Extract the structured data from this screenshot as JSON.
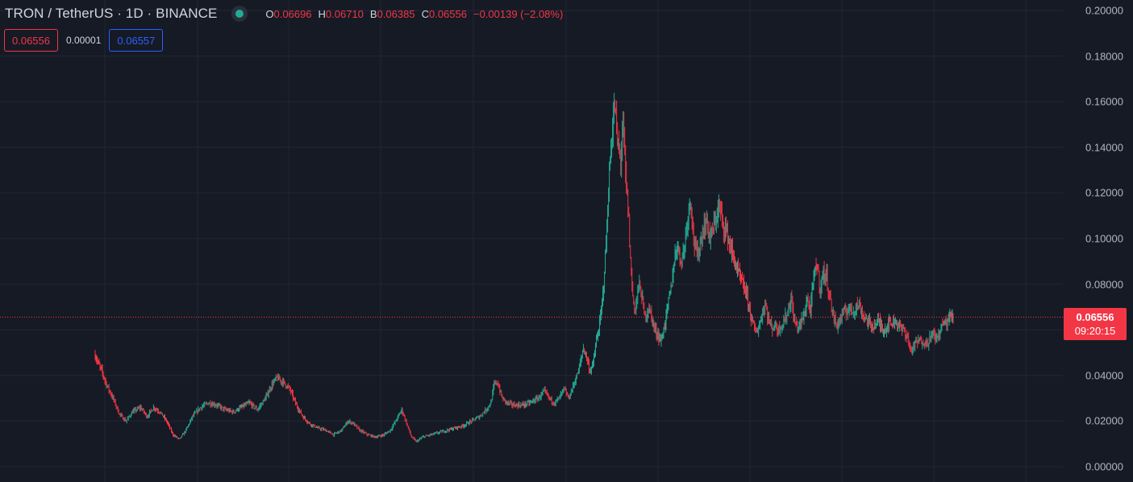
{
  "header": {
    "symbol_title": "TRON / TetherUS · 1D · BINANCE",
    "ohlc": {
      "open_label": "O",
      "open": "0.06696",
      "high_label": "H",
      "high": "0.06710",
      "low_label": "B",
      "low": "0.06385",
      "close_label": "C",
      "close": "0.06556",
      "change": "−0.00139 (−2.08%)"
    },
    "sell_price": "0.06556",
    "spread": "0.00001",
    "buy_price": "0.06557"
  },
  "last_price": {
    "price": "0.06556",
    "countdown": "09:20:15",
    "value": 0.06556
  },
  "colors": {
    "background": "#161a25",
    "grid": "#232734",
    "up": "#22ab94",
    "down": "#f23645",
    "text": "#d1d4dc",
    "axis_text": "#b2b5be",
    "buy": "#2962ff"
  },
  "chart_data": {
    "type": "candlestick",
    "title": "TRON / TetherUS · 1D · BINANCE",
    "y_axis": {
      "ticks": [
        "0.20000",
        "0.18000",
        "0.16000",
        "0.14000",
        "0.12000",
        "0.10000",
        "0.08000",
        "0.06000",
        "0.04000",
        "0.02000",
        "0.00000"
      ],
      "tick_values": [
        0.2,
        0.18,
        0.16,
        0.14,
        0.12,
        0.1,
        0.08,
        0.06,
        0.04,
        0.02,
        0.0
      ],
      "range": [
        -0.006,
        0.2045
      ],
      "position": "right"
    },
    "grid": true,
    "close_series_approx": [
      [
        0,
        0.049
      ],
      [
        4,
        0.045
      ],
      [
        8,
        0.042
      ],
      [
        14,
        0.036
      ],
      [
        22,
        0.03
      ],
      [
        30,
        0.023
      ],
      [
        38,
        0.02
      ],
      [
        46,
        0.024
      ],
      [
        56,
        0.026
      ],
      [
        64,
        0.022
      ],
      [
        72,
        0.026
      ],
      [
        80,
        0.024
      ],
      [
        88,
        0.02
      ],
      [
        96,
        0.014
      ],
      [
        104,
        0.012
      ],
      [
        112,
        0.016
      ],
      [
        120,
        0.022
      ],
      [
        130,
        0.026
      ],
      [
        140,
        0.028
      ],
      [
        150,
        0.027
      ],
      [
        160,
        0.025
      ],
      [
        170,
        0.024
      ],
      [
        180,
        0.026
      ],
      [
        190,
        0.028
      ],
      [
        200,
        0.025
      ],
      [
        210,
        0.03
      ],
      [
        218,
        0.036
      ],
      [
        224,
        0.039
      ],
      [
        232,
        0.037
      ],
      [
        240,
        0.034
      ],
      [
        248,
        0.027
      ],
      [
        256,
        0.022
      ],
      [
        264,
        0.019
      ],
      [
        274,
        0.017
      ],
      [
        284,
        0.016
      ],
      [
        294,
        0.014
      ],
      [
        304,
        0.016
      ],
      [
        312,
        0.02
      ],
      [
        318,
        0.019
      ],
      [
        326,
        0.016
      ],
      [
        336,
        0.014
      ],
      [
        346,
        0.013
      ],
      [
        356,
        0.014
      ],
      [
        364,
        0.016
      ],
      [
        372,
        0.021
      ],
      [
        378,
        0.025
      ],
      [
        384,
        0.019
      ],
      [
        390,
        0.013
      ],
      [
        396,
        0.011
      ],
      [
        404,
        0.013
      ],
      [
        414,
        0.014
      ],
      [
        424,
        0.015
      ],
      [
        434,
        0.016
      ],
      [
        444,
        0.017
      ],
      [
        454,
        0.018
      ],
      [
        464,
        0.02
      ],
      [
        474,
        0.022
      ],
      [
        482,
        0.025
      ],
      [
        488,
        0.028
      ],
      [
        492,
        0.036
      ],
      [
        496,
        0.037
      ],
      [
        502,
        0.03
      ],
      [
        508,
        0.028
      ],
      [
        516,
        0.027
      ],
      [
        526,
        0.027
      ],
      [
        536,
        0.028
      ],
      [
        546,
        0.03
      ],
      [
        554,
        0.033
      ],
      [
        560,
        0.03
      ],
      [
        566,
        0.028
      ],
      [
        572,
        0.03
      ],
      [
        578,
        0.034
      ],
      [
        584,
        0.03
      ],
      [
        590,
        0.036
      ],
      [
        596,
        0.042
      ],
      [
        602,
        0.052
      ],
      [
        606,
        0.048
      ],
      [
        610,
        0.042
      ],
      [
        614,
        0.045
      ],
      [
        618,
        0.055
      ],
      [
        622,
        0.062
      ],
      [
        626,
        0.075
      ],
      [
        630,
        0.098
      ],
      [
        634,
        0.128
      ],
      [
        638,
        0.15
      ],
      [
        641,
        0.158
      ],
      [
        644,
        0.142
      ],
      [
        648,
        0.135
      ],
      [
        651,
        0.15
      ],
      [
        654,
        0.128
      ],
      [
        658,
        0.108
      ],
      [
        660,
        0.09
      ],
      [
        663,
        0.075
      ],
      [
        666,
        0.068
      ],
      [
        670,
        0.08
      ],
      [
        674,
        0.075
      ],
      [
        678,
        0.065
      ],
      [
        682,
        0.07
      ],
      [
        686,
        0.066
      ],
      [
        690,
        0.06
      ],
      [
        694,
        0.058
      ],
      [
        698,
        0.055
      ],
      [
        702,
        0.062
      ],
      [
        706,
        0.07
      ],
      [
        710,
        0.078
      ],
      [
        714,
        0.09
      ],
      [
        718,
        0.098
      ],
      [
        722,
        0.09
      ],
      [
        726,
        0.095
      ],
      [
        730,
        0.108
      ],
      [
        734,
        0.118
      ],
      [
        738,
        0.1
      ],
      [
        742,
        0.092
      ],
      [
        746,
        0.098
      ],
      [
        750,
        0.104
      ],
      [
        754,
        0.108
      ],
      [
        758,
        0.1
      ],
      [
        762,
        0.104
      ],
      [
        766,
        0.11
      ],
      [
        770,
        0.114
      ],
      [
        774,
        0.106
      ],
      [
        778,
        0.104
      ],
      [
        782,
        0.098
      ],
      [
        786,
        0.093
      ],
      [
        790,
        0.088
      ],
      [
        794,
        0.084
      ],
      [
        798,
        0.08
      ],
      [
        802,
        0.077
      ],
      [
        806,
        0.071
      ],
      [
        810,
        0.064
      ],
      [
        814,
        0.059
      ],
      [
        818,
        0.061
      ],
      [
        822,
        0.066
      ],
      [
        826,
        0.072
      ],
      [
        830,
        0.065
      ],
      [
        834,
        0.061
      ],
      [
        838,
        0.062
      ],
      [
        842,
        0.06
      ],
      [
        846,
        0.062
      ],
      [
        850,
        0.064
      ],
      [
        854,
        0.068
      ],
      [
        858,
        0.074
      ],
      [
        862,
        0.064
      ],
      [
        866,
        0.061
      ],
      [
        870,
        0.063
      ],
      [
        874,
        0.066
      ],
      [
        878,
        0.074
      ],
      [
        882,
        0.068
      ],
      [
        886,
        0.083
      ],
      [
        890,
        0.089
      ],
      [
        894,
        0.078
      ],
      [
        898,
        0.085
      ],
      [
        902,
        0.083
      ],
      [
        906,
        0.074
      ],
      [
        910,
        0.066
      ],
      [
        914,
        0.062
      ],
      [
        918,
        0.064
      ],
      [
        922,
        0.067
      ],
      [
        926,
        0.068
      ],
      [
        930,
        0.07
      ],
      [
        934,
        0.068
      ],
      [
        938,
        0.07
      ],
      [
        942,
        0.071
      ],
      [
        946,
        0.067
      ],
      [
        950,
        0.065
      ],
      [
        954,
        0.063
      ],
      [
        958,
        0.062
      ],
      [
        962,
        0.062
      ],
      [
        966,
        0.064
      ],
      [
        970,
        0.061
      ],
      [
        974,
        0.06
      ],
      [
        978,
        0.063
      ],
      [
        982,
        0.063
      ],
      [
        986,
        0.064
      ],
      [
        990,
        0.063
      ],
      [
        994,
        0.06
      ],
      [
        998,
        0.06
      ],
      [
        1002,
        0.056
      ],
      [
        1006,
        0.051
      ],
      [
        1010,
        0.053
      ],
      [
        1014,
        0.055
      ],
      [
        1018,
        0.055
      ],
      [
        1022,
        0.055
      ],
      [
        1026,
        0.054
      ],
      [
        1030,
        0.057
      ],
      [
        1034,
        0.058
      ],
      [
        1038,
        0.056
      ],
      [
        1042,
        0.06
      ],
      [
        1046,
        0.063
      ],
      [
        1050,
        0.063
      ],
      [
        1054,
        0.066
      ],
      [
        1058,
        0.0656
      ]
    ],
    "last_close": 0.06556
  }
}
